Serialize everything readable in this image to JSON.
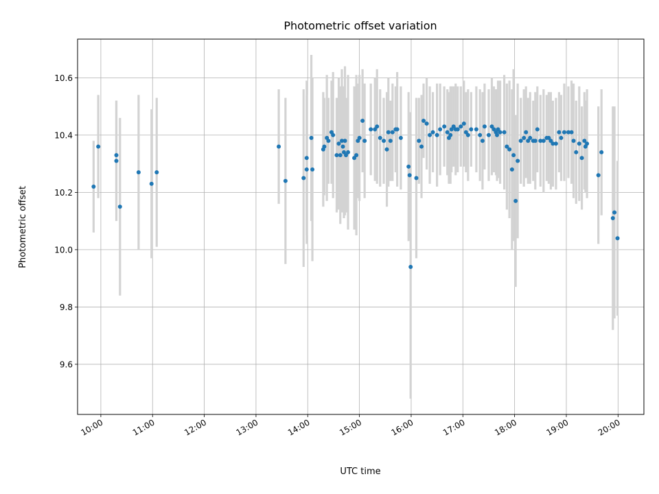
{
  "chart_data": {
    "type": "scatter",
    "title": "Photometric offset variation",
    "xlabel": "UTC time",
    "ylabel": "Photometric offset",
    "x_unit": "UTC hour of day",
    "xlim": [
      9.55,
      20.5
    ],
    "ylim": [
      9.425,
      10.735
    ],
    "grid": true,
    "x_ticks": [
      10,
      11,
      12,
      13,
      14,
      15,
      16,
      17,
      18,
      19,
      20
    ],
    "x_tick_labels": [
      "10:00",
      "11:00",
      "12:00",
      "13:00",
      "14:00",
      "15:00",
      "16:00",
      "17:00",
      "18:00",
      "19:00",
      "20:00"
    ],
    "y_ticks": [
      9.6,
      9.8,
      10.0,
      10.2,
      10.4,
      10.6
    ],
    "y_tick_labels": [
      "9.6",
      "9.8",
      "10.0",
      "10.2",
      "10.4",
      "10.6"
    ],
    "colors": {
      "marker": "#1f77b4",
      "errorbar": "#d3d3d3"
    },
    "series": [
      {
        "x": [
          9.86,
          9.95,
          10.3,
          10.3,
          10.37,
          10.73,
          10.98,
          11.08,
          13.44,
          13.57,
          13.92,
          13.98,
          13.98,
          14.07,
          14.09,
          14.3,
          14.32,
          14.37,
          14.4,
          14.46,
          14.49,
          14.56,
          14.6,
          14.63,
          14.66,
          14.68,
          14.7,
          14.72,
          14.74,
          14.78,
          14.9,
          14.94,
          14.97,
          15.0,
          15.06,
          15.1,
          15.22,
          15.3,
          15.34,
          15.4,
          15.47,
          15.53,
          15.56,
          15.6,
          15.64,
          15.7,
          15.73,
          15.8,
          15.95,
          15.97,
          15.99,
          16.1,
          16.15,
          16.2,
          16.24,
          16.3,
          16.36,
          16.42,
          16.5,
          16.56,
          16.64,
          16.7,
          16.73,
          16.76,
          16.78,
          16.82,
          16.86,
          16.9,
          16.96,
          17.02,
          17.06,
          17.1,
          17.16,
          17.26,
          17.33,
          17.38,
          17.42,
          17.5,
          17.56,
          17.6,
          17.64,
          17.66,
          17.68,
          17.72,
          17.8,
          17.85,
          17.9,
          17.95,
          17.98,
          18.02,
          18.06,
          18.12,
          18.18,
          18.22,
          18.26,
          18.3,
          18.36,
          18.4,
          18.44,
          18.5,
          18.56,
          18.62,
          18.66,
          18.7,
          18.74,
          18.8,
          18.86,
          18.9,
          18.96,
          19.04,
          19.1,
          19.14,
          19.19,
          19.25,
          19.3,
          19.35,
          19.37,
          19.4,
          19.62,
          19.68,
          19.9,
          19.93,
          19.99
        ],
        "y": [
          10.22,
          10.36,
          10.31,
          10.33,
          10.15,
          10.27,
          10.23,
          10.27,
          10.36,
          10.24,
          10.25,
          10.32,
          10.28,
          10.39,
          10.28,
          10.35,
          10.36,
          10.39,
          10.38,
          10.41,
          10.4,
          10.33,
          10.37,
          10.33,
          10.38,
          10.36,
          10.34,
          10.38,
          10.33,
          10.34,
          10.32,
          10.33,
          10.38,
          10.39,
          10.45,
          10.38,
          10.42,
          10.42,
          10.43,
          10.39,
          10.38,
          10.35,
          10.41,
          10.38,
          10.41,
          10.42,
          10.42,
          10.39,
          10.29,
          10.26,
          9.94,
          10.25,
          10.38,
          10.36,
          10.45,
          10.44,
          10.4,
          10.41,
          10.4,
          10.42,
          10.43,
          10.41,
          10.39,
          10.4,
          10.42,
          10.43,
          10.42,
          10.42,
          10.43,
          10.44,
          10.41,
          10.4,
          10.42,
          10.42,
          10.4,
          10.38,
          10.43,
          10.4,
          10.43,
          10.42,
          10.41,
          10.4,
          10.42,
          10.41,
          10.41,
          10.36,
          10.35,
          10.28,
          10.33,
          10.17,
          10.31,
          10.38,
          10.39,
          10.41,
          10.38,
          10.39,
          10.38,
          10.38,
          10.42,
          10.38,
          10.38,
          10.39,
          10.39,
          10.38,
          10.37,
          10.37,
          10.41,
          10.39,
          10.41,
          10.41,
          10.41,
          10.38,
          10.34,
          10.37,
          10.32,
          10.38,
          10.36,
          10.37,
          10.26,
          10.34,
          10.11,
          10.13,
          10.04
        ],
        "yerr": [
          0.16,
          0.18,
          0.21,
          0.19,
          0.31,
          0.27,
          0.26,
          0.26,
          0.2,
          0.29,
          0.31,
          0.27,
          0.26,
          0.29,
          0.32,
          0.2,
          0.17,
          0.22,
          0.15,
          0.18,
          0.22,
          0.2,
          0.23,
          0.24,
          0.25,
          0.18,
          0.23,
          0.26,
          0.2,
          0.27,
          0.25,
          0.28,
          0.2,
          0.22,
          0.18,
          0.2,
          0.16,
          0.18,
          0.2,
          0.17,
          0.15,
          0.2,
          0.19,
          0.14,
          0.17,
          0.15,
          0.2,
          0.18,
          0.26,
          0.22,
          0.46,
          0.28,
          0.15,
          0.18,
          0.13,
          0.16,
          0.17,
          0.14,
          0.18,
          0.16,
          0.14,
          0.15,
          0.16,
          0.17,
          0.15,
          0.14,
          0.16,
          0.15,
          0.14,
          0.15,
          0.14,
          0.16,
          0.13,
          0.15,
          0.16,
          0.17,
          0.15,
          0.16,
          0.17,
          0.15,
          0.15,
          0.16,
          0.17,
          0.18,
          0.2,
          0.22,
          0.24,
          0.28,
          0.3,
          0.3,
          0.27,
          0.15,
          0.17,
          0.16,
          0.15,
          0.16,
          0.14,
          0.17,
          0.15,
          0.16,
          0.18,
          0.15,
          0.16,
          0.17,
          0.15,
          0.16,
          0.14,
          0.15,
          0.17,
          0.16,
          0.18,
          0.2,
          0.18,
          0.2,
          0.18,
          0.17,
          0.16,
          0.19,
          0.24,
          0.22,
          0.39,
          0.37,
          0.27
        ]
      }
    ]
  }
}
